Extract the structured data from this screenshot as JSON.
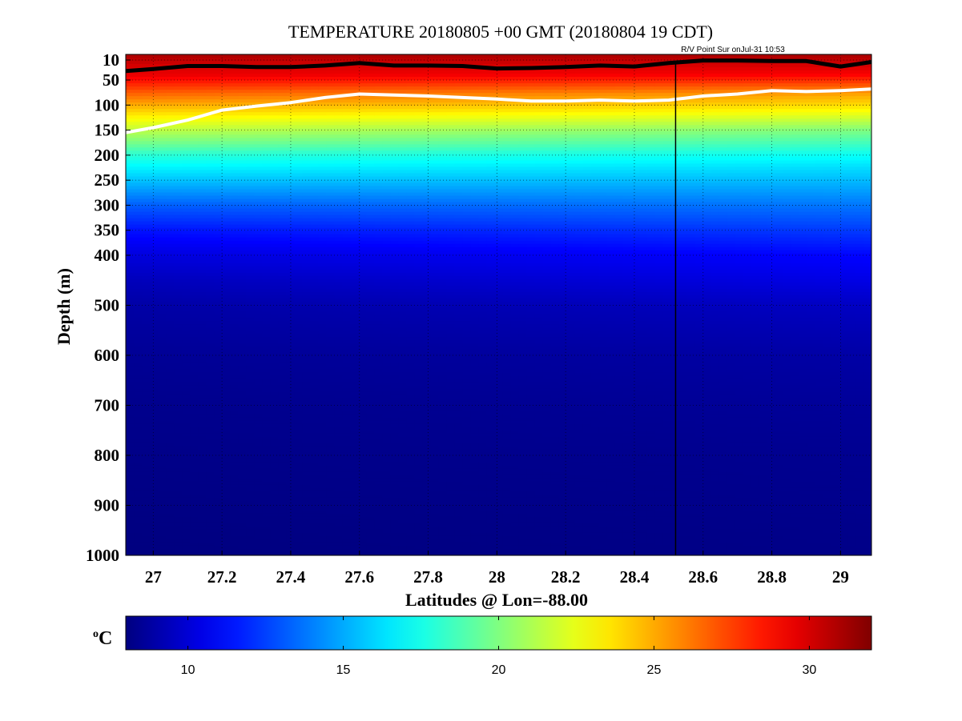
{
  "chart_data": {
    "type": "heatmap",
    "title": "TEMPERATURE 20180805 +00 GMT (20180804 19 CDT)",
    "subtitle": "R/V Point Sur onJul-31 10:53",
    "xlabel": "Latitudes @ Lon=-88.00",
    "ylabel": "Depth (m)",
    "xlim": [
      26.92,
      29.09
    ],
    "ylim": [
      1000,
      0
    ],
    "y_scale": "piecewise: expanded 0-400 m, linear 400-1000 m",
    "grid": true,
    "xticks": [
      27,
      27.2,
      27.4,
      27.6,
      27.8,
      28,
      28.2,
      28.4,
      28.6,
      28.8,
      29
    ],
    "xtick_labels": [
      "27",
      "27.2",
      "27.4",
      "27.6",
      "27.8",
      "28",
      "28.2",
      "28.4",
      "28.6",
      "28.8",
      "29"
    ],
    "yticks": [
      10,
      50,
      100,
      150,
      200,
      250,
      300,
      350,
      400,
      500,
      600,
      700,
      800,
      900,
      1000
    ],
    "ytick_labels": [
      "10",
      "50",
      "100",
      "150",
      "200",
      "250",
      "300",
      "350",
      "400",
      "500",
      "600",
      "700",
      "800",
      "900",
      "1000"
    ],
    "colormap": "jet",
    "colorbar": {
      "label": "oC",
      "range": [
        8,
        32
      ],
      "ticks": [
        10,
        15,
        20,
        25,
        30
      ],
      "tick_labels": [
        "10",
        "15",
        "20",
        "25",
        "30"
      ]
    },
    "ship_track_latitude": 28.52,
    "isotherm_black": {
      "name": "warm isotherm",
      "color": "#000000",
      "x": [
        26.92,
        27.0,
        27.1,
        27.2,
        27.3,
        27.4,
        27.5,
        27.6,
        27.7,
        27.8,
        27.9,
        28.0,
        28.1,
        28.2,
        28.3,
        28.4,
        28.5,
        28.6,
        28.7,
        28.8,
        28.9,
        29.0,
        29.09
      ],
      "depth": [
        32,
        28,
        22,
        22,
        24,
        24,
        21,
        16,
        21,
        21,
        22,
        27,
        26,
        24,
        21,
        23,
        16,
        11,
        11,
        12,
        12,
        23,
        14
      ]
    },
    "isotherm_white": {
      "name": "cool isotherm",
      "color": "#ffffff",
      "x": [
        26.92,
        27.0,
        27.1,
        27.2,
        27.3,
        27.4,
        27.5,
        27.6,
        27.7,
        27.8,
        27.9,
        28.0,
        28.1,
        28.2,
        28.3,
        28.4,
        28.5,
        28.6,
        28.7,
        28.8,
        28.9,
        29.0,
        29.09
      ],
      "depth": [
        155,
        145,
        130,
        110,
        102,
        95,
        85,
        78,
        80,
        82,
        85,
        88,
        92,
        92,
        90,
        92,
        90,
        82,
        78,
        71,
        73,
        71,
        68
      ]
    },
    "temperature_profile": {
      "depth": [
        0,
        20,
        40,
        60,
        80,
        100,
        120,
        150,
        175,
        200,
        225,
        250,
        275,
        300,
        350,
        400,
        450,
        500,
        600,
        700,
        800,
        900,
        1000
      ],
      "temp_north": [
        31,
        30,
        29,
        27,
        25,
        23.8,
        22.3,
        20.0,
        18.6,
        17.2,
        16.2,
        15.4,
        14.6,
        13.8,
        12.4,
        11.1,
        10.4,
        9.6,
        8.9,
        8.6,
        8.4,
        8.3,
        8.2
      ],
      "temp_south": [
        31,
        30,
        29.5,
        28,
        26.5,
        25,
        23.5,
        21.5,
        19.8,
        18.0,
        16.8,
        15.6,
        14.4,
        13.2,
        11.4,
        10.2,
        9.4,
        8.9,
        8.5,
        8.3,
        8.2,
        8.1,
        8.0
      ]
    }
  }
}
